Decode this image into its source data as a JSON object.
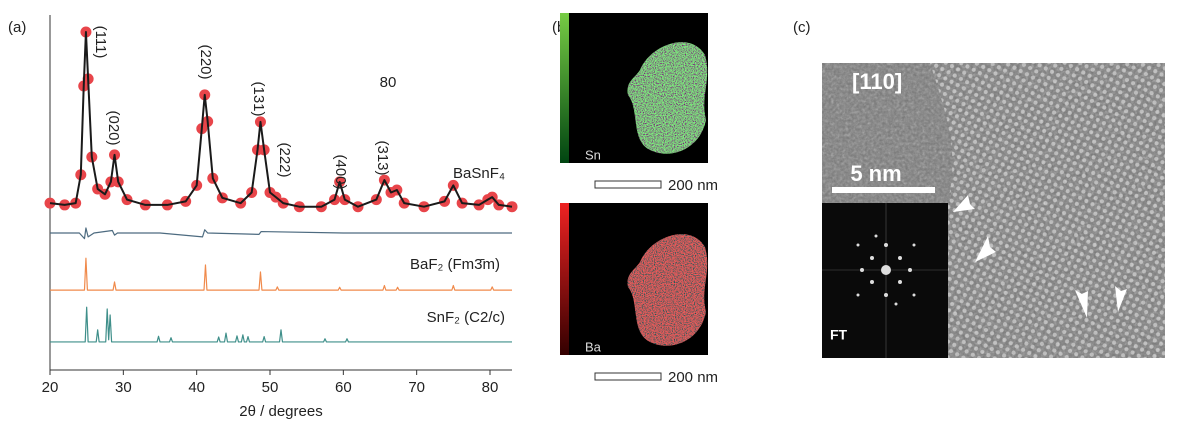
{
  "chart_data": {
    "type": "line",
    "xlabel": "2θ / degrees",
    "panel_label": "(a)",
    "xlim": [
      20,
      83
    ],
    "ylim": [
      0,
      100
    ],
    "xticks": [
      20,
      30,
      40,
      50,
      60,
      70,
      80
    ],
    "annotations": [
      "(111)",
      "(020)",
      "(220)",
      "(131)",
      "(222)",
      "(400)",
      "(313)",
      "80"
    ],
    "series": [
      {
        "style": "markers",
        "color": "#e8454a",
        "x": [
          20,
          22,
          23.5,
          24.2,
          24.6,
          24.9,
          25.2,
          25.7,
          26.5,
          27.5,
          28.3,
          28.8,
          29.3,
          30.5,
          33,
          36,
          38.5,
          40,
          40.7,
          41.1,
          41.5,
          42.2,
          43.5,
          46,
          47.5,
          48.3,
          48.7,
          49.2,
          50,
          50.8,
          51.8,
          54,
          57,
          58.8,
          59.5,
          60.2,
          62,
          64.5,
          65.6,
          66.5,
          67.3,
          68.3,
          71,
          73.8,
          75,
          76.2,
          78.5,
          79.7,
          80.3,
          81.2,
          83
        ],
        "values": [
          47,
          46.5,
          47,
          55,
          80,
          95.2,
          82,
          60,
          51,
          49.5,
          53,
          60.6,
          53,
          48,
          46.5,
          46.5,
          47.5,
          52,
          68,
          77.5,
          70,
          54,
          48.5,
          47,
          50,
          62,
          69.9,
          62,
          50,
          48.7,
          47,
          46,
          46,
          48,
          53,
          48,
          46,
          48,
          53.5,
          50,
          50.7,
          47,
          46,
          47.5,
          52,
          47,
          46.5,
          48,
          48.7,
          46.5,
          46
        ]
      },
      {
        "name": "BaSnF₄",
        "style": "line",
        "color": "#1a1a1a",
        "x": [
          20,
          22,
          23.5,
          24.2,
          24.6,
          24.9,
          25.2,
          25.7,
          26.5,
          27.5,
          28.3,
          28.8,
          29.3,
          30.5,
          33,
          36,
          38.5,
          40,
          40.7,
          41.1,
          41.5,
          42.2,
          43.5,
          46,
          47.5,
          48.3,
          48.7,
          49.2,
          50,
          50.8,
          51.8,
          54,
          57,
          58.8,
          59.5,
          60.2,
          62,
          64.5,
          65.6,
          66.5,
          67.3,
          68.3,
          71,
          73.8,
          75,
          76.2,
          78.5,
          79.7,
          80.3,
          81.2,
          83
        ],
        "values": [
          47,
          46.5,
          47,
          55,
          80,
          95.2,
          82,
          60,
          51,
          49.5,
          53,
          60.6,
          53,
          48,
          46.5,
          46.5,
          47.5,
          52,
          68,
          77.5,
          70,
          54,
          48.5,
          47,
          50,
          62,
          69.9,
          62,
          50,
          48.7,
          47,
          46,
          46,
          48,
          53,
          48,
          46,
          48,
          53.5,
          50,
          50.7,
          47,
          46,
          47.5,
          52,
          47,
          46.5,
          48,
          48.7,
          46.5,
          46
        ]
      },
      {
        "style": "line",
        "color": "#4d6b80",
        "x": [
          20,
          24,
          24.7,
          24.9,
          25.2,
          26,
          28.5,
          28.8,
          29.2,
          35,
          40.8,
          41.1,
          41.5,
          48.5,
          48.8,
          60,
          83
        ],
        "values": [
          38.6,
          38.6,
          37,
          40,
          37.5,
          38.6,
          39.3,
          38,
          38.6,
          38.6,
          37.5,
          39.5,
          38.6,
          38.2,
          39,
          38.6,
          38.6
        ]
      },
      {
        "name": "BaF₂ (Fm3̄m)",
        "style": "line",
        "color": "#f08a4b",
        "x": [
          20,
          24.7,
          24.9,
          25.1,
          28.6,
          28.8,
          29,
          41,
          41.2,
          41.4,
          48.5,
          48.7,
          48.9,
          50.8,
          51,
          51.2,
          59.3,
          59.5,
          59.7,
          65.4,
          65.6,
          65.8,
          67.2,
          67.4,
          67.6,
          74.8,
          75,
          75.2,
          80.1,
          80.3,
          80.5,
          83
        ],
        "values": [
          22.5,
          22.5,
          31.5,
          22.5,
          22.5,
          24.8,
          22.5,
          22.5,
          29.6,
          22.5,
          22.5,
          27.6,
          22.5,
          22.5,
          23.4,
          22.5,
          22.5,
          23.3,
          22.5,
          22.5,
          23.8,
          22.5,
          22.5,
          23.3,
          22.5,
          22.5,
          23.8,
          22.5,
          22.5,
          23.4,
          22.5,
          22.5
        ]
      },
      {
        "name": "SnF₂ (C2/c)",
        "style": "line",
        "color": "#3f8f8a",
        "x": [
          20,
          24.8,
          25,
          25.2,
          26.3,
          26.5,
          26.7,
          27.6,
          27.8,
          28,
          28.2,
          28.4,
          34.6,
          34.8,
          35,
          36.3,
          36.5,
          36.7,
          42.8,
          43,
          43.2,
          43.8,
          44,
          44.2,
          45.3,
          45.5,
          45.7,
          46.1,
          46.3,
          46.5,
          46.8,
          47,
          47.2,
          49,
          49.2,
          49.4,
          51.3,
          51.5,
          51.7,
          57.3,
          57.5,
          57.7,
          60.3,
          60.5,
          60.7,
          83
        ],
        "values": [
          7.9,
          7.9,
          17.7,
          7.9,
          7.9,
          11.3,
          7.9,
          7.9,
          17.2,
          8.5,
          15.5,
          7.9,
          7.9,
          9.5,
          7.9,
          7.9,
          9.1,
          7.9,
          7.9,
          9.3,
          7.9,
          7.9,
          10.4,
          7.9,
          7.9,
          9.6,
          7.9,
          7.9,
          9.9,
          7.9,
          7.9,
          9.4,
          7.9,
          7.9,
          9.4,
          7.9,
          7.9,
          11.3,
          7.9,
          7.9,
          8.8,
          7.9,
          7.9,
          8.8,
          7.9,
          7.9
        ]
      }
    ]
  },
  "panels": {
    "b": {
      "label": "(b)",
      "maps": [
        {
          "element": "Sn",
          "scale": "200 nm"
        },
        {
          "element": "Ba",
          "scale": "200 nm"
        }
      ]
    },
    "c": {
      "label": "(c)",
      "zone_axis": "[110]",
      "scale": "5 nm",
      "inset": "FT"
    }
  }
}
